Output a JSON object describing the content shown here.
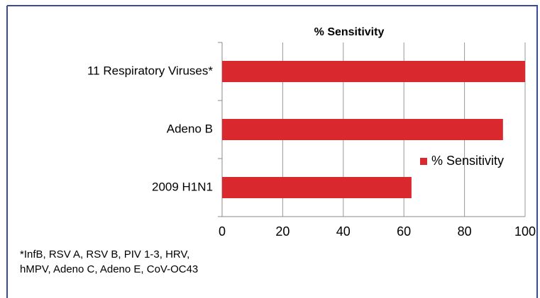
{
  "chart_data": {
    "type": "bar",
    "orientation": "horizontal",
    "title": "% Sensitivity",
    "categories": [
      "11 Respiratory Viruses*",
      "Adeno B",
      "2009 H1N1"
    ],
    "series": [
      {
        "name": "% Sensitivity",
        "color": "#d9282e",
        "values": [
          100,
          92.7,
          62.5
        ]
      }
    ],
    "xlim": [
      0,
      100
    ],
    "xticks": [
      0,
      20,
      40,
      60,
      80,
      100
    ],
    "grid": true,
    "legend": "right",
    "footnote": [
      "*InfB, RSV A, RSV B, PIV 1-3, HRV,",
      "hMPV, Adeno C, Adeno E, CoV-OC43"
    ]
  }
}
